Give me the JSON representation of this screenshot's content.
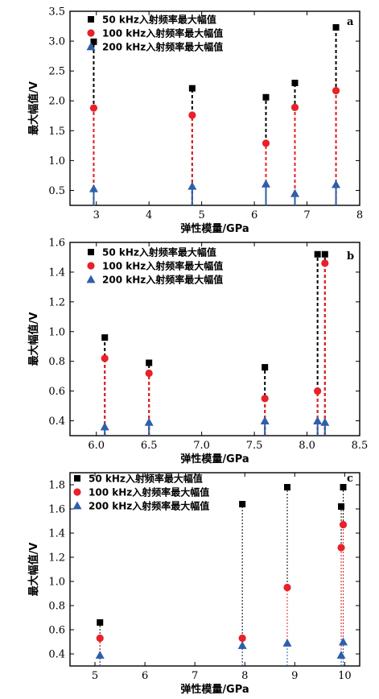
{
  "chart_data": [
    {
      "type": "scatter",
      "panel_label": "a",
      "xlabel": "弹性模量/GPa",
      "ylabel": "最大幅值/V",
      "xlim": [
        2.5,
        8.0
      ],
      "ylim": [
        0.25,
        3.5
      ],
      "xticks": [
        3,
        4,
        5,
        6,
        7,
        8
      ],
      "yticks": [
        0.5,
        1.0,
        1.5,
        2.0,
        2.5,
        3.0,
        3.5
      ],
      "x_tick_decimals": 0,
      "y_tick_decimals": 1,
      "stem_style": "bold",
      "legend": "top-right",
      "series": [
        {
          "name": "50 kHz入射频率最大幅值",
          "color": "#000000",
          "marker": "square",
          "points": [
            [
              2.95,
              2.99
            ],
            [
              4.82,
              2.21
            ],
            [
              6.22,
              2.06
            ],
            [
              6.77,
              2.3
            ],
            [
              7.55,
              3.23
            ]
          ]
        },
        {
          "name": "100 kHz入射频率最大幅值",
          "color": "#e8212a",
          "marker": "circle",
          "points": [
            [
              2.95,
              1.88
            ],
            [
              4.82,
              1.76
            ],
            [
              6.22,
              1.29
            ],
            [
              6.77,
              1.89
            ],
            [
              7.55,
              2.17
            ]
          ]
        },
        {
          "name": "200 kHz入射频率最大幅值",
          "color": "#2f5fa8",
          "marker": "triangle",
          "points": [
            [
              2.95,
              0.53
            ],
            [
              4.82,
              0.57
            ],
            [
              6.22,
              0.61
            ],
            [
              6.77,
              0.45
            ],
            [
              7.55,
              0.6
            ]
          ]
        }
      ]
    },
    {
      "type": "scatter",
      "panel_label": "b",
      "xlabel": "弹性模量/GPa",
      "ylabel": "最大幅值/V",
      "xlim": [
        5.75,
        8.5
      ],
      "ylim": [
        0.3,
        1.6
      ],
      "xticks": [
        6.0,
        6.5,
        7.0,
        7.5,
        8.0,
        8.5
      ],
      "yticks": [
        0.4,
        0.6,
        0.8,
        1.0,
        1.2,
        1.4,
        1.6
      ],
      "x_tick_decimals": 1,
      "y_tick_decimals": 1,
      "stem_style": "bold",
      "legend": "top-left",
      "series": [
        {
          "name": "50 kHz入射频率最大幅值",
          "color": "#000000",
          "marker": "square",
          "points": [
            [
              6.08,
              0.96
            ],
            [
              6.5,
              0.79
            ],
            [
              7.6,
              0.76
            ],
            [
              8.1,
              1.52
            ],
            [
              8.17,
              1.52
            ]
          ]
        },
        {
          "name": "100 kHz入射频率最大幅值",
          "color": "#e8212a",
          "marker": "circle",
          "points": [
            [
              6.08,
              0.82
            ],
            [
              6.5,
              0.72
            ],
            [
              7.6,
              0.55
            ],
            [
              8.1,
              0.6
            ],
            [
              8.17,
              1.46
            ]
          ]
        },
        {
          "name": "200 kHz入射频率最大幅值",
          "color": "#2f5fa8",
          "marker": "triangle",
          "points": [
            [
              6.08,
              0.36
            ],
            [
              6.5,
              0.39
            ],
            [
              7.6,
              0.4
            ],
            [
              8.1,
              0.4
            ],
            [
              8.17,
              0.39
            ]
          ]
        }
      ]
    },
    {
      "type": "scatter",
      "panel_label": "c",
      "xlabel": "弹性模量/GPa",
      "ylabel": "最大幅值/V",
      "xlim": [
        4.5,
        10.3
      ],
      "ylim": [
        0.3,
        1.9
      ],
      "xticks": [
        5,
        6,
        7,
        8,
        9,
        10
      ],
      "yticks": [
        0.4,
        0.6,
        0.8,
        1.0,
        1.2,
        1.4,
        1.6,
        1.8
      ],
      "x_tick_decimals": 0,
      "y_tick_decimals": 1,
      "stem_style": "thin",
      "legend": "top-left",
      "series": [
        {
          "name": "50 kHz入射频率最大幅值",
          "color": "#000000",
          "marker": "square",
          "points": [
            [
              5.1,
              0.66
            ],
            [
              7.95,
              1.64
            ],
            [
              8.85,
              1.78
            ],
            [
              9.93,
              1.62
            ],
            [
              9.97,
              1.78
            ]
          ]
        },
        {
          "name": "100 kHz入射频率最大幅值",
          "color": "#e8212a",
          "marker": "circle",
          "points": [
            [
              5.1,
              0.53
            ],
            [
              7.95,
              0.53
            ],
            [
              8.85,
              0.95
            ],
            [
              9.93,
              1.28
            ],
            [
              9.97,
              1.47
            ]
          ]
        },
        {
          "name": "200 kHz入射频率最大幅值",
          "color": "#2f5fa8",
          "marker": "triangle",
          "points": [
            [
              5.1,
              0.39
            ],
            [
              7.95,
              0.47
            ],
            [
              8.85,
              0.49
            ],
            [
              9.93,
              0.39
            ],
            [
              9.97,
              0.5
            ]
          ]
        }
      ]
    }
  ]
}
